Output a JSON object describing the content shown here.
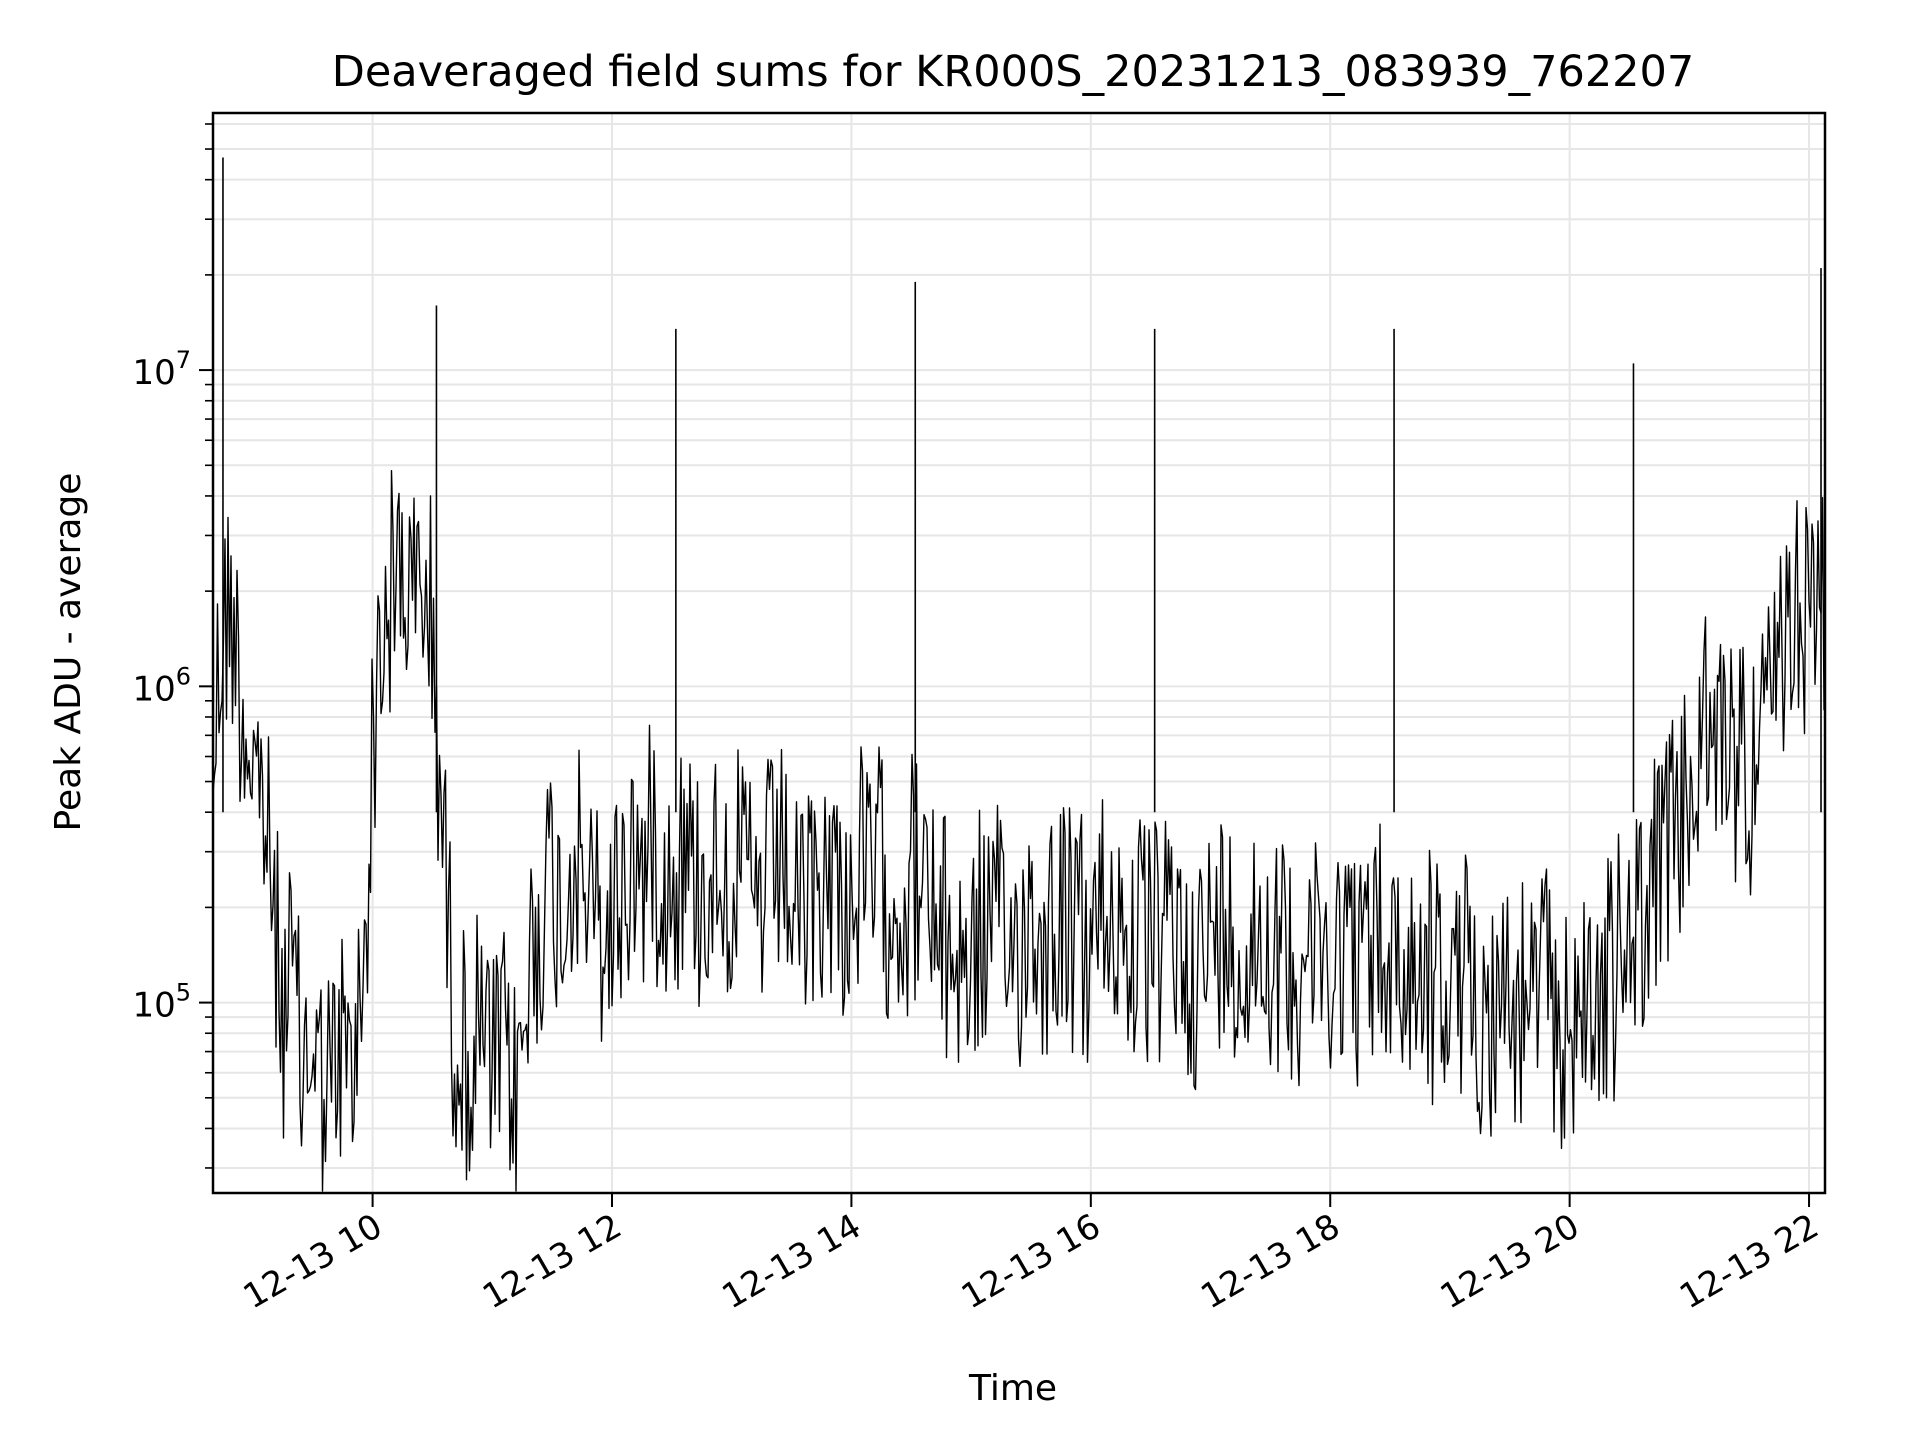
{
  "chart_data": {
    "type": "line",
    "title": "Deaveraged field sums for KR000S_20231213_083939_762207",
    "xlabel": "Time",
    "ylabel": "Peak ADU - average",
    "yscale": "log",
    "ylim": [
      25000,
      65000000
    ],
    "xlim": [
      "2023-12-13 08:40",
      "2023-12-13 22:08"
    ],
    "grid": true,
    "line_color": "#000000",
    "grid_color": "#e6e6e6",
    "xticks": [
      {
        "label": "12-13 10",
        "x": "2023-12-13 10:00"
      },
      {
        "label": "12-13 12",
        "x": "2023-12-13 12:00"
      },
      {
        "label": "12-13 14",
        "x": "2023-12-13 14:00"
      },
      {
        "label": "12-13 16",
        "x": "2023-12-13 16:00"
      },
      {
        "label": "12-13 18",
        "x": "2023-12-13 18:00"
      },
      {
        "label": "12-13 20",
        "x": "2023-12-13 20:00"
      },
      {
        "label": "12-13 22",
        "x": "2023-12-13 22:00"
      }
    ],
    "yticks": [
      {
        "base": "10",
        "exp": "5",
        "value": 100000
      },
      {
        "base": "10",
        "exp": "6",
        "value": 1000000
      },
      {
        "base": "10",
        "exp": "7",
        "value": 10000000
      }
    ],
    "series": [
      {
        "x": [
          "2023-12-13 08:40",
          "2023-12-13 08:45",
          "2023-12-13 08:50",
          "2023-12-13 08:55",
          "2023-12-13 09:00",
          "2023-12-13 09:05",
          "2023-12-13 09:10",
          "2023-12-13 09:15",
          "2023-12-13 09:20",
          "2023-12-13 09:25",
          "2023-12-13 09:30",
          "2023-12-13 09:35",
          "2023-12-13 09:40",
          "2023-12-13 09:45",
          "2023-12-13 09:50",
          "2023-12-13 09:55",
          "2023-12-13 10:00",
          "2023-12-13 10:05",
          "2023-12-13 10:10",
          "2023-12-13 10:15",
          "2023-12-13 10:20",
          "2023-12-13 10:25",
          "2023-12-13 10:30",
          "2023-12-13 10:35",
          "2023-12-13 10:40",
          "2023-12-13 10:45",
          "2023-12-13 10:50",
          "2023-12-13 10:55",
          "2023-12-13 11:00",
          "2023-12-13 11:05",
          "2023-12-13 11:10",
          "2023-12-13 11:15",
          "2023-12-13 11:20",
          "2023-12-13 11:25",
          "2023-12-13 11:30",
          "2023-12-13 11:35",
          "2023-12-13 11:40",
          "2023-12-13 11:45",
          "2023-12-13 11:50",
          "2023-12-13 11:55",
          "2023-12-13 12:00",
          "2023-12-13 12:05",
          "2023-12-13 12:10",
          "2023-12-13 12:15",
          "2023-12-13 12:20",
          "2023-12-13 12:25",
          "2023-12-13 12:30",
          "2023-12-13 12:35",
          "2023-12-13 12:40",
          "2023-12-13 12:45",
          "2023-12-13 12:50",
          "2023-12-13 12:55",
          "2023-12-13 13:00",
          "2023-12-13 13:05",
          "2023-12-13 13:10",
          "2023-12-13 13:15",
          "2023-12-13 13:20",
          "2023-12-13 13:25",
          "2023-12-13 13:30",
          "2023-12-13 13:35",
          "2023-12-13 13:40",
          "2023-12-13 13:45",
          "2023-12-13 13:50",
          "2023-12-13 13:55",
          "2023-12-13 14:00",
          "2023-12-13 14:05",
          "2023-12-13 14:10",
          "2023-12-13 14:15",
          "2023-12-13 14:20",
          "2023-12-13 14:25",
          "2023-12-13 14:30",
          "2023-12-13 14:35",
          "2023-12-13 14:40",
          "2023-12-13 14:45",
          "2023-12-13 14:50",
          "2023-12-13 14:55",
          "2023-12-13 15:00",
          "2023-12-13 15:05",
          "2023-12-13 15:10",
          "2023-12-13 15:15",
          "2023-12-13 15:20",
          "2023-12-13 15:25",
          "2023-12-13 15:30",
          "2023-12-13 15:35",
          "2023-12-13 15:40",
          "2023-12-13 15:45",
          "2023-12-13 15:50",
          "2023-12-13 15:55",
          "2023-12-13 16:00",
          "2023-12-13 16:05",
          "2023-12-13 16:10",
          "2023-12-13 16:15",
          "2023-12-13 16:20",
          "2023-12-13 16:25",
          "2023-12-13 16:30",
          "2023-12-13 16:35",
          "2023-12-13 16:40",
          "2023-12-13 16:45",
          "2023-12-13 16:50",
          "2023-12-13 16:55",
          "2023-12-13 17:00",
          "2023-12-13 17:05",
          "2023-12-13 17:10",
          "2023-12-13 17:15",
          "2023-12-13 17:20",
          "2023-12-13 17:25",
          "2023-12-13 17:30",
          "2023-12-13 17:35",
          "2023-12-13 17:40",
          "2023-12-13 17:45",
          "2023-12-13 17:50",
          "2023-12-13 17:55",
          "2023-12-13 18:00",
          "2023-12-13 18:05",
          "2023-12-13 18:10",
          "2023-12-13 18:15",
          "2023-12-13 18:20",
          "2023-12-13 18:25",
          "2023-12-13 18:30",
          "2023-12-13 18:35",
          "2023-12-13 18:40",
          "2023-12-13 18:45",
          "2023-12-13 18:50",
          "2023-12-13 18:55",
          "2023-12-13 19:00",
          "2023-12-13 19:05",
          "2023-12-13 19:10",
          "2023-12-13 19:15",
          "2023-12-13 19:20",
          "2023-12-13 19:25",
          "2023-12-13 19:30",
          "2023-12-13 19:35",
          "2023-12-13 19:40",
          "2023-12-13 19:45",
          "2023-12-13 19:50",
          "2023-12-13 19:55",
          "2023-12-13 20:00",
          "2023-12-13 20:05",
          "2023-12-13 20:10",
          "2023-12-13 20:15",
          "2023-12-13 20:20",
          "2023-12-13 20:25",
          "2023-12-13 20:30",
          "2023-12-13 20:35",
          "2023-12-13 20:40",
          "2023-12-13 20:45",
          "2023-12-13 20:50",
          "2023-12-13 20:55",
          "2023-12-13 21:00",
          "2023-12-13 21:05",
          "2023-12-13 21:10",
          "2023-12-13 21:15",
          "2023-12-13 21:20",
          "2023-12-13 21:25",
          "2023-12-13 21:30",
          "2023-12-13 21:35",
          "2023-12-13 21:40",
          "2023-12-13 21:45",
          "2023-12-13 21:50",
          "2023-12-13 21:55",
          "2023-12-13 22:00",
          "2023-12-13 22:05"
        ],
        "y": [
          600000,
          1600000,
          1800000,
          800000,
          600000,
          450000,
          200000,
          90000,
          120000,
          60000,
          80000,
          50000,
          60000,
          70000,
          55000,
          120000,
          600000,
          1500000,
          2000000,
          2500000,
          1800000,
          2200000,
          1400000,
          400000,
          100000,
          70000,
          60000,
          90000,
          55000,
          80000,
          50000,
          70000,
          150000,
          200000,
          250000,
          180000,
          300000,
          250000,
          200000,
          150000,
          180000,
          220000,
          300000,
          260000,
          350000,
          280000,
          240000,
          300000,
          260000,
          220000,
          280000,
          300000,
          250000,
          260000,
          220000,
          200000,
          240000,
          260000,
          220000,
          180000,
          200000,
          230000,
          250000,
          220000,
          200000,
          260000,
          240000,
          280000,
          220000,
          200000,
          250000,
          230000,
          180000,
          160000,
          150000,
          130000,
          140000,
          160000,
          180000,
          150000,
          140000,
          170000,
          190000,
          160000,
          180000,
          200000,
          170000,
          160000,
          150000,
          180000,
          200000,
          170000,
          160000,
          150000,
          140000,
          160000,
          180000,
          150000,
          140000,
          130000,
          150000,
          170000,
          160000,
          140000,
          150000,
          170000,
          160000,
          140000,
          130000,
          150000,
          160000,
          140000,
          130000,
          150000,
          160000,
          140000,
          130000,
          150000,
          140000,
          130000,
          120000,
          140000,
          130000,
          110000,
          100000,
          120000,
          110000,
          100000,
          90000,
          110000,
          100000,
          90000,
          100000,
          120000,
          100000,
          90000,
          85000,
          95000,
          100000,
          110000,
          120000,
          130000,
          150000,
          180000,
          220000,
          260000,
          300000,
          350000,
          500000,
          600000,
          700000,
          650000,
          700000,
          600000,
          550000,
          650000,
          800000,
          1000000,
          1400000,
          1800000,
          1900000,
          1600000
        ],
        "spikes": [
          {
            "x": "2023-12-13 08:45",
            "y": 47000000
          },
          {
            "x": "2023-12-13 10:32",
            "y": 16000000
          },
          {
            "x": "2023-12-13 12:32",
            "y": 13500000
          },
          {
            "x": "2023-12-13 14:32",
            "y": 19000000
          },
          {
            "x": "2023-12-13 16:32",
            "y": 13500000
          },
          {
            "x": "2023-12-13 18:32",
            "y": 13500000
          },
          {
            "x": "2023-12-13 20:32",
            "y": 10500000
          },
          {
            "x": "2023-12-13 22:06",
            "y": 21000000
          }
        ]
      }
    ]
  }
}
